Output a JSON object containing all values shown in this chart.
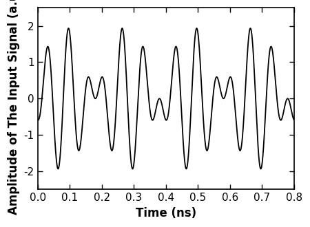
{
  "title": "",
  "xlabel": "Time (ns)",
  "ylabel": "Amplitude of The Input Signal (a.u.)",
  "xlim": [
    0.0,
    0.8
  ],
  "ylim": [
    -2.5,
    2.5
  ],
  "xticks": [
    0.0,
    0.1,
    0.2,
    0.3,
    0.4,
    0.5,
    0.6,
    0.7,
    0.8
  ],
  "yticks": [
    -2,
    -1,
    0,
    1,
    2
  ],
  "f1": 12.5,
  "f2": 17.5,
  "phi1": 1.5707963,
  "phi2": 3.14159265,
  "line_color": "#000000",
  "line_width": 1.3,
  "background_color": "#ffffff",
  "tick_fontsize": 11,
  "label_fontsize": 12
}
